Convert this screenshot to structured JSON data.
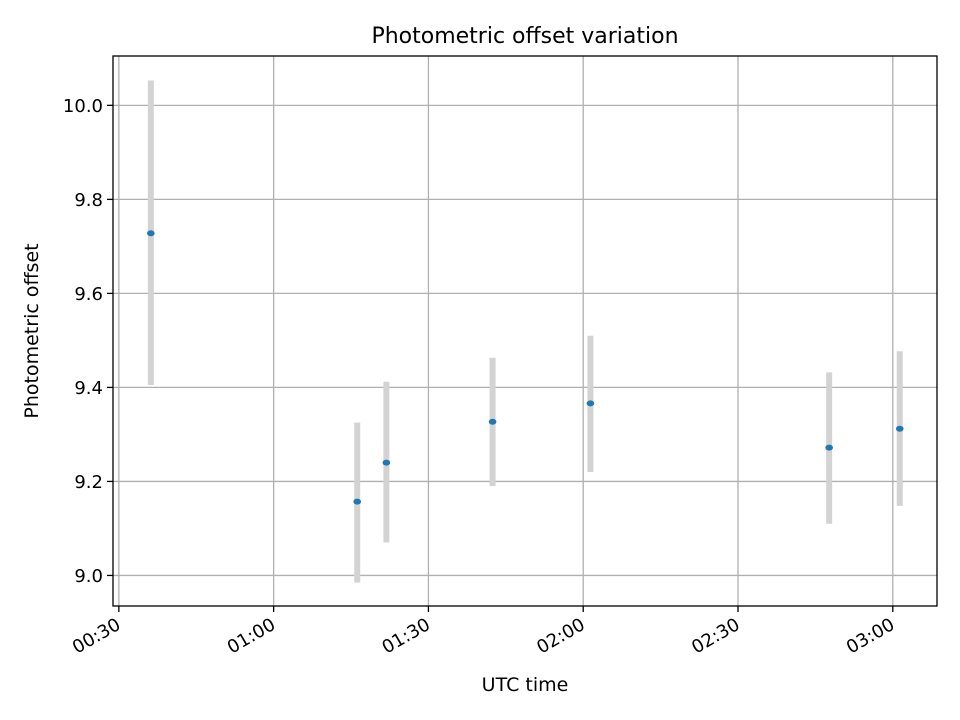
{
  "chart_data": {
    "type": "scatter",
    "title": "Photometric offset variation",
    "xlabel": "UTC time",
    "ylabel": "Photometric offset",
    "x_ticks": [
      "00:30",
      "01:00",
      "01:30",
      "02:00",
      "02:30",
      "03:00"
    ],
    "y_ticks": [
      "9.0",
      "9.2",
      "9.4",
      "9.6",
      "9.8",
      "10.0"
    ],
    "xlim": [
      "00:28:52",
      "03:08:34"
    ],
    "ylim": [
      8.935,
      10.105
    ],
    "grid": true,
    "series": [
      {
        "marker_color": "#1f77b4",
        "errorbar_color": "#d3d3d3",
        "points": [
          {
            "x": "00:36:12",
            "y": 9.728,
            "ylow": 9.405,
            "yhigh": 10.053
          },
          {
            "x": "01:16:12",
            "y": 9.157,
            "ylow": 8.985,
            "yhigh": 9.325
          },
          {
            "x": "01:21:51",
            "y": 9.24,
            "ylow": 9.07,
            "yhigh": 9.412
          },
          {
            "x": "01:42:26",
            "y": 9.327,
            "ylow": 9.19,
            "yhigh": 9.463
          },
          {
            "x": "02:01:24",
            "y": 9.366,
            "ylow": 9.22,
            "yhigh": 9.51
          },
          {
            "x": "02:47:40",
            "y": 9.272,
            "ylow": 9.11,
            "yhigh": 9.432
          },
          {
            "x": "03:01:21",
            "y": 9.312,
            "ylow": 9.148,
            "yhigh": 9.477
          }
        ]
      }
    ]
  }
}
